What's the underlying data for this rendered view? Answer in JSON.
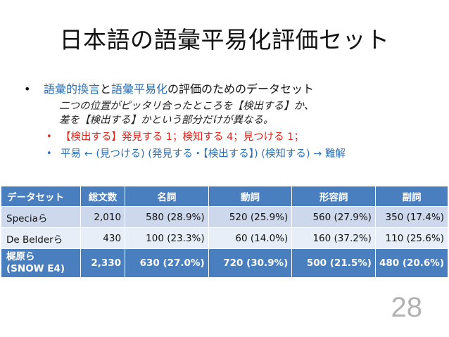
{
  "slide": {
    "title": "日本語の語彙平易化評価セット",
    "bullet1": {
      "seg1": "語彙的換言",
      "seg2": "と",
      "seg3": "語彙平易化",
      "seg4": "の評価のためのデータセット"
    },
    "quote": {
      "line1": "二つの位置がピッタリ合ったところを【検出する】か、",
      "line2": "差を【検出する】かという部分だけが異なる。"
    },
    "sub1": "【検出する】発見する 1；検知する 4；見つける 1；",
    "sub2": "平易 ← (見つける) (発見する・【検出する】) (検知する) → 難解",
    "page_number": "28"
  },
  "table": {
    "headers": [
      "データセット",
      "総文数",
      "名詞",
      "動詞",
      "形容詞",
      "副詞"
    ],
    "rows": [
      [
        "Speciaら",
        "2,010",
        "580 (28.9%)",
        "520 (25.9%)",
        "560 (27.9%)",
        "350 (17.4%)"
      ],
      [
        "De Belderら",
        "430",
        "100 (23.3%)",
        "60 (14.0%)",
        "160 (37.2%)",
        "110 (25.6%)"
      ]
    ],
    "last_row": {
      "name_line1": "梶原ら",
      "name_line2": "(SNOW E4)",
      "cells": [
        "2,330",
        "630 (27.0%)",
        "720 (30.9%)",
        "500 (21.5%)",
        "480 (20.6%)"
      ]
    }
  },
  "colors": {
    "header_blue": "#4a7fbf",
    "row_light_1": "#cdd8ec",
    "row_light_2": "#e8eef7",
    "accent_blue": "#2b6fb4",
    "accent_red": "#d9281f"
  }
}
